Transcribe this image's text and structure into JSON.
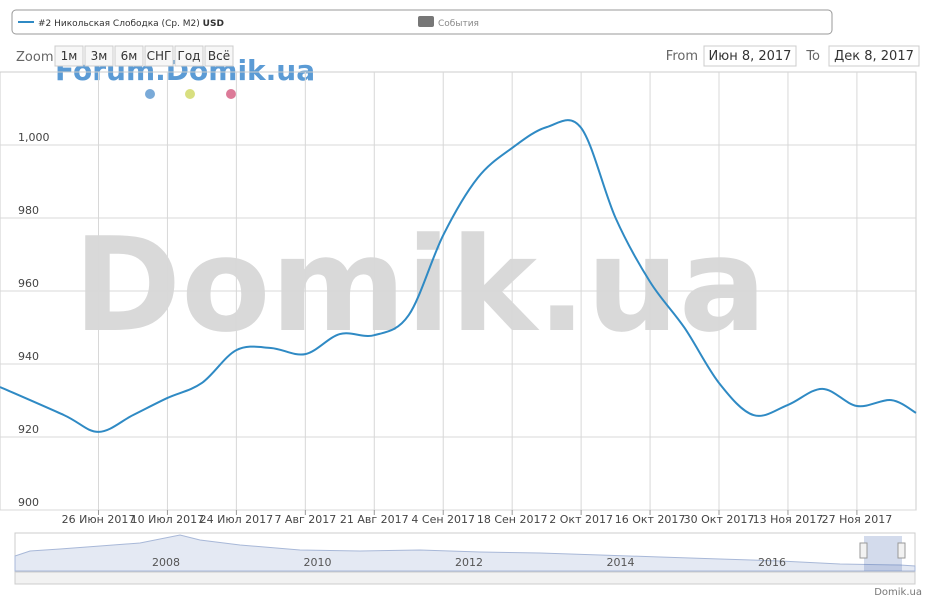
{
  "chart_data": {
    "type": "line",
    "series": [
      {
        "name": "#2 Никольская Слободка (Ср. М2)",
        "color": "#2f8ac4",
        "values": [
          933.7,
          926,
          921.4,
          926,
          930.7,
          934.8,
          943.8,
          944.4,
          942.7,
          948.2,
          947.9,
          953.4,
          975.3,
          991,
          999.2,
          1004.9,
          1004.7,
          980,
          962.5,
          949.9,
          934.8,
          926,
          928.8,
          933.2,
          928.5,
          930.1,
          926.6
        ]
      }
    ],
    "currency": "USD",
    "events_label": "События",
    "x": [
      "2017-06-06",
      "2017-06-19",
      "2017-06-26",
      "2017-07-03",
      "2017-07-10",
      "2017-07-17",
      "2017-07-24",
      "2017-07-31",
      "2017-08-07",
      "2017-08-14",
      "2017-08-21",
      "2017-08-28",
      "2017-09-04",
      "2017-09-11",
      "2017-09-18",
      "2017-09-25",
      "2017-10-02",
      "2017-10-09",
      "2017-10-16",
      "2017-10-23",
      "2017-10-30",
      "2017-11-06",
      "2017-11-13",
      "2017-11-20",
      "2017-11-27",
      "2017-12-04",
      "2017-12-09"
    ],
    "xlim": [
      "2017-06-06",
      "2017-12-09"
    ],
    "xticks": [
      {
        "value": "2017-06-26",
        "label": "26 Июн 2017"
      },
      {
        "value": "2017-07-10",
        "label": "10 Июл 2017"
      },
      {
        "value": "2017-07-24",
        "label": "24 Июл 2017"
      },
      {
        "value": "2017-08-07",
        "label": "7 Авг 2017"
      },
      {
        "value": "2017-08-21",
        "label": "21 Авг 2017"
      },
      {
        "value": "2017-09-04",
        "label": "4 Сен 2017"
      },
      {
        "value": "2017-09-18",
        "label": "18 Сен 2017"
      },
      {
        "value": "2017-10-02",
        "label": "2 Окт 2017"
      },
      {
        "value": "2017-10-16",
        "label": "16 Окт 2017"
      },
      {
        "value": "2017-10-30",
        "label": "30 Окт 2017"
      },
      {
        "value": "2017-11-13",
        "label": "13 Ноя 2017"
      },
      {
        "value": "2017-11-27",
        "label": "27 Ноя 2017"
      }
    ],
    "ylim": [
      900,
      1020
    ],
    "yticks": [
      900,
      920,
      940,
      960,
      980,
      {
        "value": 1000,
        "label": "1,000"
      }
    ],
    "grid": true,
    "range_selector": {
      "zoom_label": "Zoom",
      "buttons": [
        "1м",
        "3м",
        "6м",
        "СНГ",
        "Год",
        "Всё"
      ],
      "from_label": "From",
      "from": "Июн 8, 2017",
      "to_label": "To",
      "to": "Дек 8, 2017"
    },
    "watermarks": [
      "Forum.Domik.ua",
      "Domik.ua"
    ],
    "navigator_years": [
      "2008",
      "2010",
      "2012",
      "2014",
      "2016"
    ],
    "credit": "Domik.ua"
  }
}
